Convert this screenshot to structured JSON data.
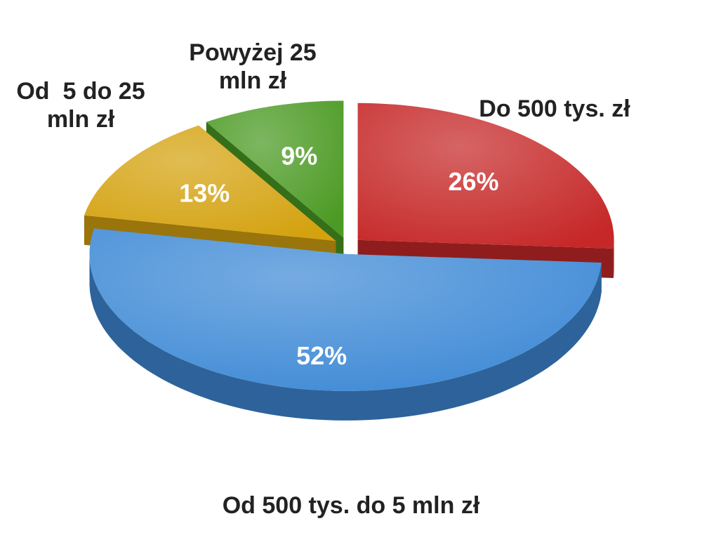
{
  "chart_data": {
    "type": "pie",
    "categories": [
      "Do 500 tys. zł",
      "Od 500 tys. do 5 mln zł",
      "Od  5 do 25 mln zł",
      "Powyżej 25 mln zł"
    ],
    "values": [
      26,
      52,
      13,
      9
    ],
    "value_labels": [
      "26%",
      "52%",
      "13%",
      "9%"
    ],
    "colors": [
      "#c62828",
      "#3f8ad6",
      "#d4a20f",
      "#4b9a23"
    ]
  }
}
